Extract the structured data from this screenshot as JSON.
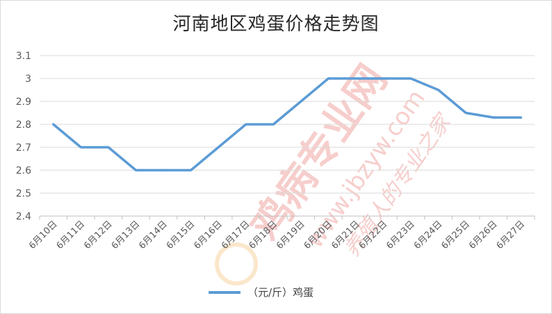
{
  "chart_data": {
    "type": "line",
    "title": "河南地区鸡蛋价格走势图",
    "xlabel": "",
    "ylabel": "",
    "categories": [
      "6月10日",
      "6月11日",
      "6月12日",
      "6月13日",
      "6月14日",
      "6月15日",
      "6月16日",
      "6月17日",
      "6月18日",
      "6月19日",
      "6月20日",
      "6月21日",
      "6月22日",
      "6月23日",
      "6月24日",
      "6月25日",
      "6月26日",
      "6月27日"
    ],
    "series": [
      {
        "name": "（元/斤）鸡蛋",
        "values": [
          2.8,
          2.7,
          2.7,
          2.6,
          2.6,
          2.6,
          2.7,
          2.8,
          2.8,
          2.9,
          3.0,
          3.0,
          3.0,
          3.0,
          2.95,
          2.85,
          2.83,
          2.83
        ],
        "color": "#5b9bd5"
      }
    ],
    "ylim": [
      2.4,
      3.1
    ],
    "yticks": [
      "2.4",
      "2.5",
      "2.6",
      "2.7",
      "2.8",
      "2.9",
      "3",
      "3.1"
    ],
    "grid": true,
    "legend": "bottom",
    "watermark": {
      "site": "鸡病专业网",
      "url": "www.jbzyw.com",
      "slogan": "养殖人的专业之家"
    }
  }
}
